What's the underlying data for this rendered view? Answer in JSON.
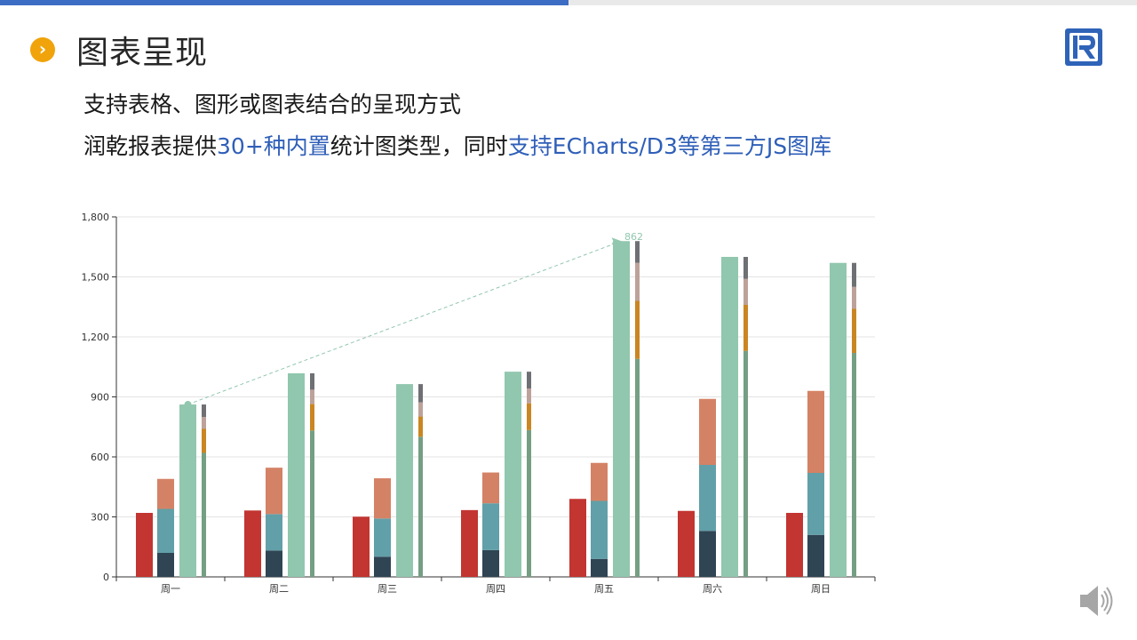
{
  "slide": {
    "progress": 0.5,
    "title": "图表呈现",
    "title_icon": "chevron-right-circle-icon",
    "logo_icon": "runqian-r-logo-icon",
    "line1": "支持表格、图形或图表结合的呈现方式",
    "line2": {
      "part1": "润乾报表提供",
      "part2": "30+种内置",
      "part3": "统计图类型，同时",
      "part4": "支持ECharts/D3等第三方JS图库"
    },
    "speaker_icon": "speaker-volume-icon",
    "colors": {
      "accent": "#3d6cc4",
      "highlight": "#2f5fb8",
      "bullet": "#f0a30a"
    }
  },
  "chart_data": {
    "type": "bar",
    "categories": [
      "周一",
      "周二",
      "周三",
      "周四",
      "周五",
      "周六",
      "周日"
    ],
    "ylim": [
      0,
      1800
    ],
    "yticks": [
      "0",
      "300",
      "600",
      "900",
      "1,200",
      "1,500",
      "1,800"
    ],
    "ytick_values": [
      0,
      300,
      600,
      900,
      1200,
      1500,
      1800
    ],
    "grid": true,
    "series": [
      {
        "stack": "a",
        "color": "#c23531",
        "values": [
          320,
          332,
          301,
          334,
          390,
          330,
          320
        ]
      },
      {
        "stack": "b",
        "color": "#2f4554",
        "values": [
          120,
          132,
          101,
          134,
          90,
          230,
          210
        ]
      },
      {
        "stack": "b",
        "color": "#61a0a8",
        "values": [
          220,
          182,
          191,
          234,
          290,
          330,
          310
        ]
      },
      {
        "stack": "b",
        "color": "#d48265",
        "values": [
          150,
          232,
          201,
          154,
          190,
          330,
          410
        ]
      },
      {
        "stack": "c",
        "color": "#91c7ae",
        "values": [
          862,
          1018,
          964,
          1026,
          1679,
          1600,
          1570
        ]
      },
      {
        "stack": "d",
        "color": "#749f83",
        "values": [
          620,
          732,
          701,
          734,
          1090,
          1130,
          1120
        ]
      },
      {
        "stack": "d",
        "color": "#ca8622",
        "values": [
          120,
          132,
          101,
          134,
          290,
          230,
          220
        ]
      },
      {
        "stack": "d",
        "color": "#bda29a",
        "values": [
          60,
          72,
          71,
          74,
          190,
          130,
          110
        ]
      },
      {
        "stack": "d",
        "color": "#6e7074",
        "values": [
          62,
          82,
          91,
          84,
          109,
          110,
          120
        ]
      }
    ],
    "markline": {
      "from_category": "周一",
      "to_category": "周五",
      "from_value": 862,
      "to_value": 1679,
      "label": "862",
      "color": "#91c7ae"
    }
  }
}
